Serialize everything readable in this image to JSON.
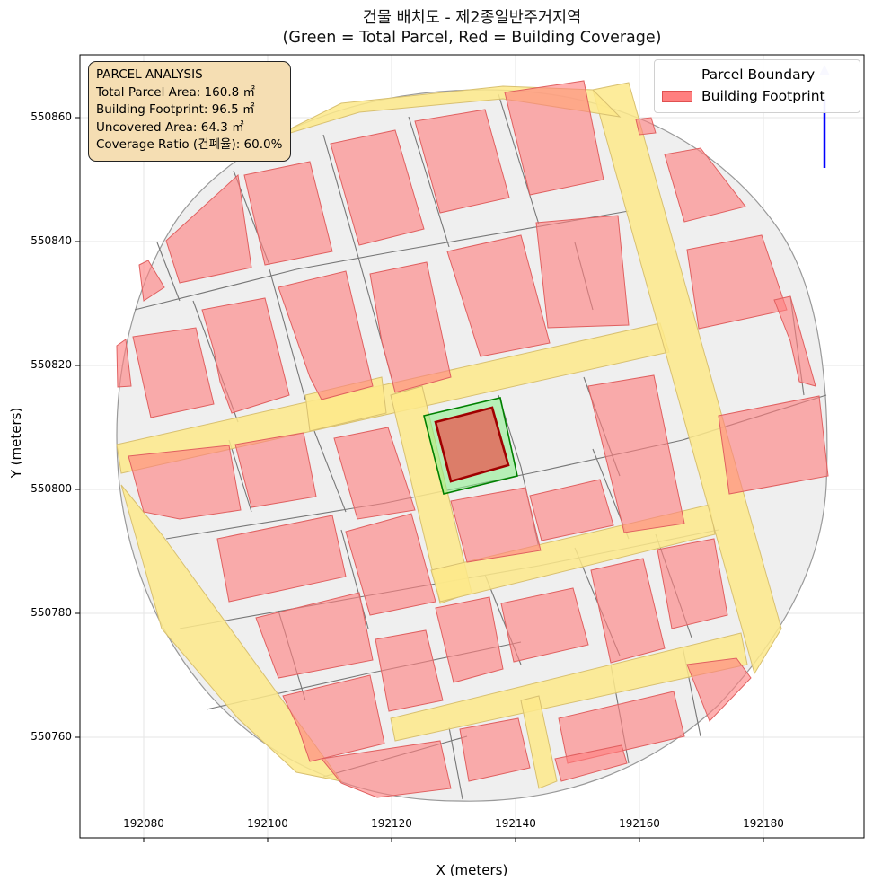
{
  "title": {
    "line1": "건물 배치도 - 제2종일반주거지역",
    "line2": "(Green = Total Parcel, Red = Building Coverage)"
  },
  "axes": {
    "xlabel": "X (meters)",
    "ylabel": "Y (meters)",
    "xticks": [
      "192080",
      "192100",
      "192120",
      "192140",
      "192160",
      "192180"
    ],
    "yticks": [
      "550860",
      "550840",
      "550820",
      "550800",
      "550780",
      "550760"
    ]
  },
  "infobox": {
    "heading": "PARCEL ANALYSIS",
    "total_parcel_area": "Total Parcel Area: 160.8 ㎡",
    "building_footprint": "Building Footprint: 96.5 ㎡",
    "uncovered_area": "Uncovered Area: 64.3 ㎡",
    "coverage_ratio": "Coverage Ratio (건폐율): 60.0%"
  },
  "legend": {
    "parcel_boundary": "Parcel Boundary",
    "building_footprint": "Building Footprint"
  },
  "colors": {
    "parcel_outline": "#008000",
    "parcel_fill": "#90ee90",
    "building_fill": "#ff7f7f",
    "road": "#fde98a",
    "block": "#efefef",
    "north_arrow": "#0000ff"
  }
}
